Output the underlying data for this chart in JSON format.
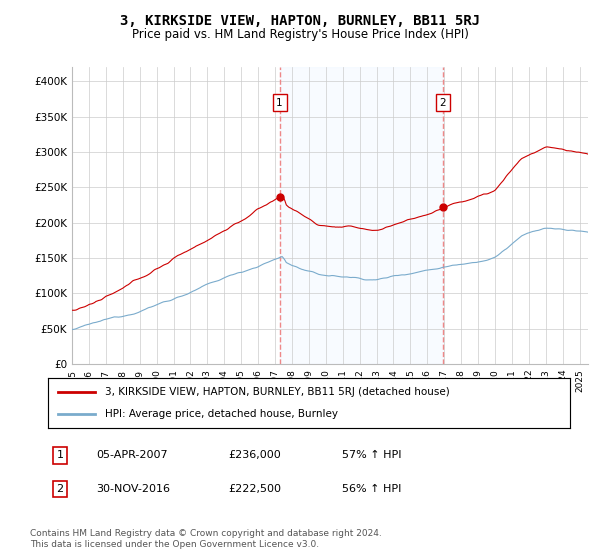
{
  "title": "3, KIRKSIDE VIEW, HAPTON, BURNLEY, BB11 5RJ",
  "subtitle": "Price paid vs. HM Land Registry's House Price Index (HPI)",
  "title_fontsize": 10,
  "subtitle_fontsize": 8.5,
  "ylabel_ticks": [
    "£0",
    "£50K",
    "£100K",
    "£150K",
    "£200K",
    "£250K",
    "£300K",
    "£350K",
    "£400K"
  ],
  "ytick_values": [
    0,
    50000,
    100000,
    150000,
    200000,
    250000,
    300000,
    350000,
    400000
  ],
  "ylim": [
    0,
    420000
  ],
  "xlim_start": 1995.0,
  "xlim_end": 2025.5,
  "sale1_x": 2007.27,
  "sale1_y": 236000,
  "sale1_label": "1",
  "sale1_date": "05-APR-2007",
  "sale1_price": "£236,000",
  "sale1_hpi": "57% ↑ HPI",
  "sale2_x": 2016.92,
  "sale2_y": 222500,
  "sale2_label": "2",
  "sale2_date": "30-NOV-2016",
  "sale2_price": "£222,500",
  "sale2_hpi": "56% ↑ HPI",
  "property_color": "#cc0000",
  "hpi_color": "#7aabcc",
  "shade_color": "#ddeeff",
  "vline_color": "#ee8888",
  "background_color": "#ffffff",
  "grid_color": "#cccccc",
  "legend_label_property": "3, KIRKSIDE VIEW, HAPTON, BURNLEY, BB11 5RJ (detached house)",
  "legend_label_hpi": "HPI: Average price, detached house, Burnley",
  "footer": "Contains HM Land Registry data © Crown copyright and database right 2024.\nThis data is licensed under the Open Government Licence v3.0."
}
